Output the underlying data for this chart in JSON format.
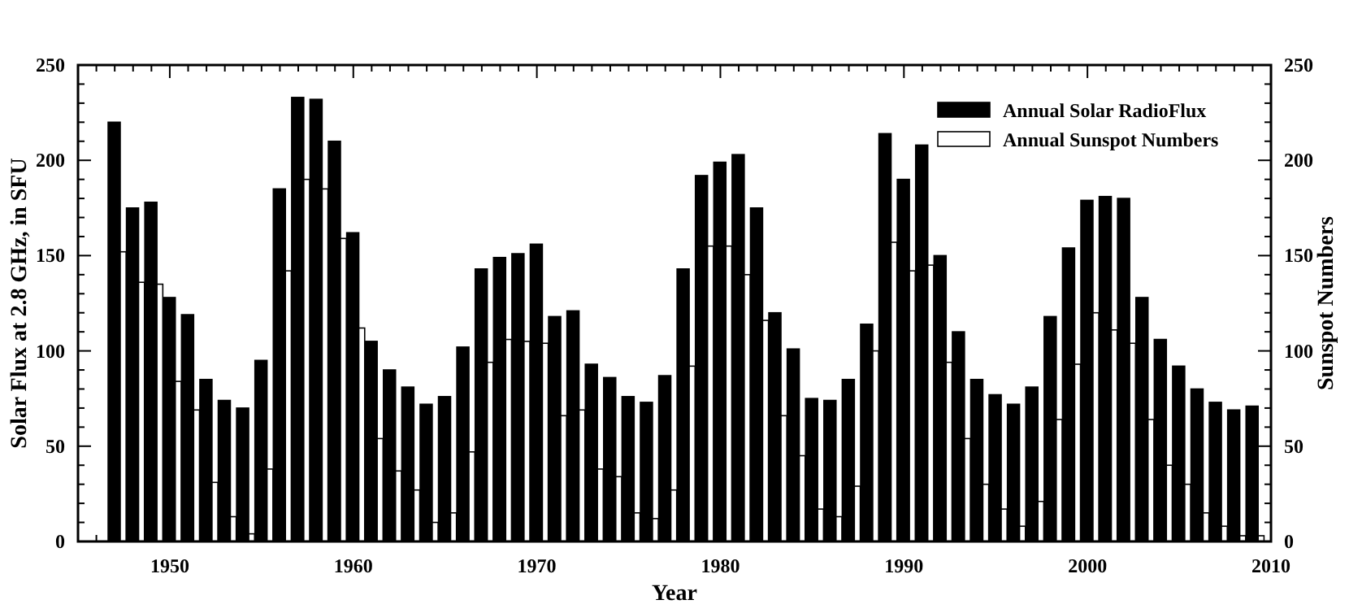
{
  "chart_data": {
    "type": "bar",
    "xlabel": "Year",
    "ylabel": "Solar Flux at 2.8 GHz, in SFU",
    "y2label": "Sunspot Numbers",
    "x": [
      1947,
      1948,
      1949,
      1950,
      1951,
      1952,
      1953,
      1954,
      1955,
      1956,
      1957,
      1958,
      1959,
      1960,
      1961,
      1962,
      1963,
      1964,
      1965,
      1966,
      1967,
      1968,
      1969,
      1970,
      1971,
      1972,
      1973,
      1974,
      1975,
      1976,
      1977,
      1978,
      1979,
      1980,
      1981,
      1982,
      1983,
      1984,
      1985,
      1986,
      1987,
      1988,
      1989,
      1990,
      1991,
      1992,
      1993,
      1994,
      1995,
      1996,
      1997,
      1998,
      1999,
      2000,
      2001,
      2002,
      2003,
      2004,
      2005,
      2006,
      2007,
      2008,
      2009
    ],
    "series": [
      {
        "name": "Annual Solar RadioFlux",
        "color": "#000000",
        "values": [
          220,
          175,
          178,
          128,
          119,
          85,
          74,
          70,
          95,
          185,
          233,
          232,
          210,
          162,
          105,
          90,
          81,
          72,
          76,
          102,
          143,
          149,
          151,
          156,
          118,
          121,
          93,
          86,
          76,
          73,
          87,
          143,
          192,
          199,
          203,
          175,
          120,
          101,
          75,
          74,
          85,
          114,
          214,
          190,
          208,
          150,
          110,
          85,
          77,
          72,
          81,
          118,
          154,
          179,
          181,
          180,
          128,
          106,
          92,
          80,
          73,
          69,
          71
        ]
      },
      {
        "name": "Annual Sunspot Numbers",
        "color": "#ffffff",
        "axis": "y2",
        "values": [
          152,
          136,
          135,
          84,
          69,
          31,
          13,
          4,
          38,
          142,
          190,
          185,
          159,
          112,
          54,
          37,
          27,
          10,
          15,
          47,
          94,
          106,
          105,
          104,
          66,
          69,
          38,
          34,
          15,
          12,
          27,
          92,
          155,
          155,
          140,
          116,
          66,
          45,
          17,
          13,
          29,
          100,
          157,
          142,
          145,
          94,
          54,
          30,
          17,
          8,
          21,
          64,
          93,
          120,
          111,
          104,
          64,
          40,
          30,
          15,
          8,
          3,
          3
        ]
      }
    ],
    "xlim": [
      1945,
      2010
    ],
    "xticks": [
      {
        "value": 1945,
        "label": null
      },
      {
        "value": 1946,
        "label": null
      },
      {
        "value": 1947,
        "label": null
      },
      {
        "value": 1948,
        "label": null
      },
      {
        "value": 1949,
        "label": null
      },
      1950,
      {
        "value": 1951,
        "label": null
      },
      {
        "value": 1952,
        "label": null
      },
      {
        "value": 1953,
        "label": null
      },
      {
        "value": 1954,
        "label": null
      },
      {
        "value": 1955,
        "label": null
      },
      {
        "value": 1956,
        "label": null
      },
      {
        "value": 1957,
        "label": null
      },
      {
        "value": 1958,
        "label": null
      },
      {
        "value": 1959,
        "label": null
      },
      1960,
      {
        "value": 1961,
        "label": null
      },
      {
        "value": 1962,
        "label": null
      },
      {
        "value": 1963,
        "label": null
      },
      {
        "value": 1964,
        "label": null
      },
      {
        "value": 1965,
        "label": null
      },
      {
        "value": 1966,
        "label": null
      },
      {
        "value": 1967,
        "label": null
      },
      {
        "value": 1968,
        "label": null
      },
      {
        "value": 1969,
        "label": null
      },
      1970,
      {
        "value": 1971,
        "label": null
      },
      {
        "value": 1972,
        "label": null
      },
      {
        "value": 1973,
        "label": null
      },
      {
        "value": 1974,
        "label": null
      },
      {
        "value": 1975,
        "label": null
      },
      {
        "value": 1976,
        "label": null
      },
      {
        "value": 1977,
        "label": null
      },
      {
        "value": 1978,
        "label": null
      },
      {
        "value": 1979,
        "label": null
      },
      1980,
      {
        "value": 1981,
        "label": null
      },
      {
        "value": 1982,
        "label": null
      },
      {
        "value": 1983,
        "label": null
      },
      {
        "value": 1984,
        "label": null
      },
      {
        "value": 1985,
        "label": null
      },
      {
        "value": 1986,
        "label": null
      },
      {
        "value": 1987,
        "label": null
      },
      {
        "value": 1988,
        "label": null
      },
      {
        "value": 1989,
        "label": null
      },
      1990,
      {
        "value": 1991,
        "label": null
      },
      {
        "value": 1992,
        "label": null
      },
      {
        "value": 1993,
        "label": null
      },
      {
        "value": 1994,
        "label": null
      },
      {
        "value": 1995,
        "label": null
      },
      {
        "value": 1996,
        "label": null
      },
      {
        "value": 1997,
        "label": null
      },
      {
        "value": 1998,
        "label": null
      },
      {
        "value": 1999,
        "label": null
      },
      2000,
      {
        "value": 2001,
        "label": null
      },
      {
        "value": 2002,
        "label": null
      },
      {
        "value": 2003,
        "label": null
      },
      {
        "value": 2004,
        "label": null
      },
      {
        "value": 2005,
        "label": null
      },
      {
        "value": 2006,
        "label": null
      },
      {
        "value": 2007,
        "label": null
      },
      {
        "value": 2008,
        "label": null
      },
      {
        "value": 2009,
        "label": null
      },
      2010
    ],
    "ylim": [
      0,
      250
    ],
    "yticks": [
      0,
      {
        "value": 10,
        "label": null
      },
      {
        "value": 20,
        "label": null
      },
      {
        "value": 30,
        "label": null
      },
      {
        "value": 40,
        "label": null
      },
      50,
      {
        "value": 60,
        "label": null
      },
      {
        "value": 70,
        "label": null
      },
      {
        "value": 80,
        "label": null
      },
      {
        "value": 90,
        "label": null
      },
      100,
      {
        "value": 110,
        "label": null
      },
      {
        "value": 120,
        "label": null
      },
      {
        "value": 130,
        "label": null
      },
      {
        "value": 140,
        "label": null
      },
      150,
      {
        "value": 160,
        "label": null
      },
      {
        "value": 170,
        "label": null
      },
      {
        "value": 180,
        "label": null
      },
      {
        "value": 190,
        "label": null
      },
      200,
      {
        "value": 210,
        "label": null
      },
      {
        "value": 220,
        "label": null
      },
      {
        "value": 230,
        "label": null
      },
      {
        "value": 240,
        "label": null
      },
      250
    ],
    "y2lim": [
      0,
      250
    ],
    "y2ticks": [
      0,
      {
        "value": 10,
        "label": null
      },
      {
        "value": 20,
        "label": null
      },
      {
        "value": 30,
        "label": null
      },
      {
        "value": 40,
        "label": null
      },
      50,
      {
        "value": 60,
        "label": null
      },
      {
        "value": 70,
        "label": null
      },
      {
        "value": 80,
        "label": null
      },
      {
        "value": 90,
        "label": null
      },
      100,
      {
        "value": 110,
        "label": null
      },
      {
        "value": 120,
        "label": null
      },
      {
        "value": 130,
        "label": null
      },
      {
        "value": 140,
        "label": null
      },
      150,
      {
        "value": 160,
        "label": null
      },
      {
        "value": 170,
        "label": null
      },
      {
        "value": 180,
        "label": null
      },
      {
        "value": 190,
        "label": null
      },
      200,
      {
        "value": 210,
        "label": null
      },
      {
        "value": 220,
        "label": null
      },
      {
        "value": 230,
        "label": null
      },
      {
        "value": 240,
        "label": null
      },
      250
    ],
    "grid": false,
    "legend": "top right"
  }
}
